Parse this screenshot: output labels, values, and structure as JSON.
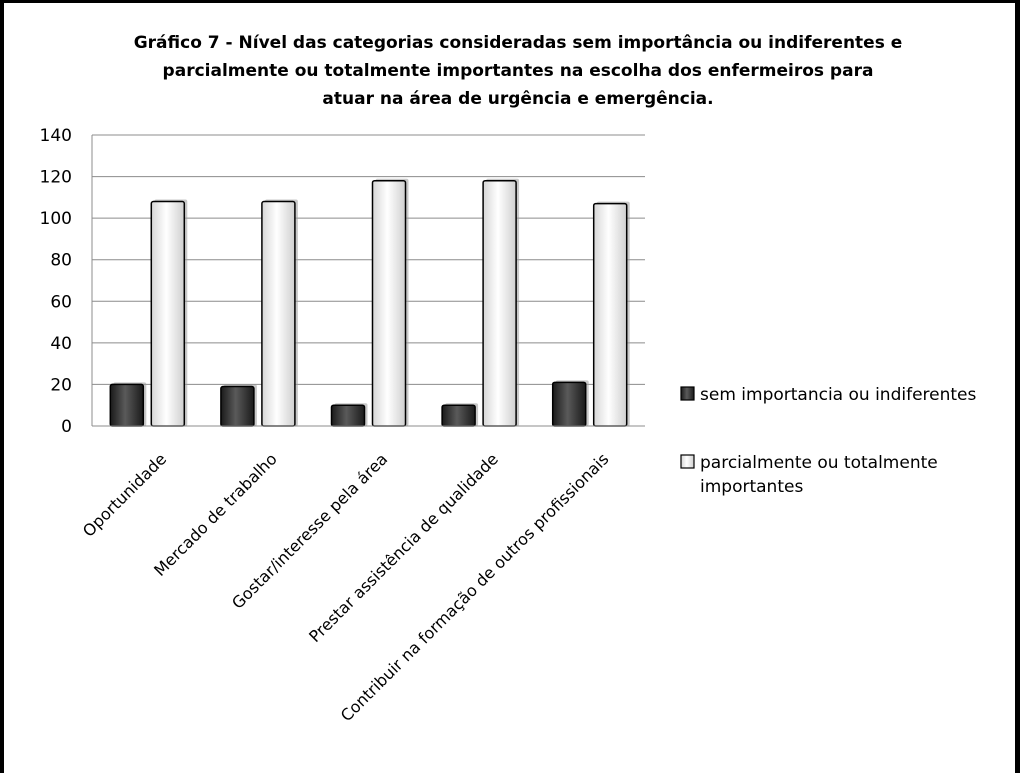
{
  "chart_data": {
    "type": "bar",
    "title_lines": [
      "Gráfico 7 - Nível das categorias consideradas sem importância ou indiferentes e",
      "parcialmente ou totalmente importantes na escolha dos enfermeiros para",
      "atuar na área de urgência e emergência."
    ],
    "categories": [
      "Oportunidade",
      "Mercado de trabalho",
      "Gostar/interesse pela área",
      "Prestar assistência de qualidade",
      "Contribuir na formação de outros profissionais"
    ],
    "series": [
      {
        "name": "sem importancia ou indiferentes",
        "values": [
          20,
          19,
          10,
          10,
          21
        ],
        "color": "#2b2b2b"
      },
      {
        "name": "parcialmente ou totalmente importantes",
        "name_lines": [
          "parcialmente ou totalmente",
          "importantes"
        ],
        "values": [
          108,
          108,
          118,
          118,
          107
        ],
        "color": "#eeeeee"
      }
    ],
    "ylim": [
      0,
      140
    ],
    "yticks": [
      0,
      20,
      40,
      60,
      80,
      100,
      120,
      140
    ],
    "grid": true,
    "legend_position": "right"
  }
}
